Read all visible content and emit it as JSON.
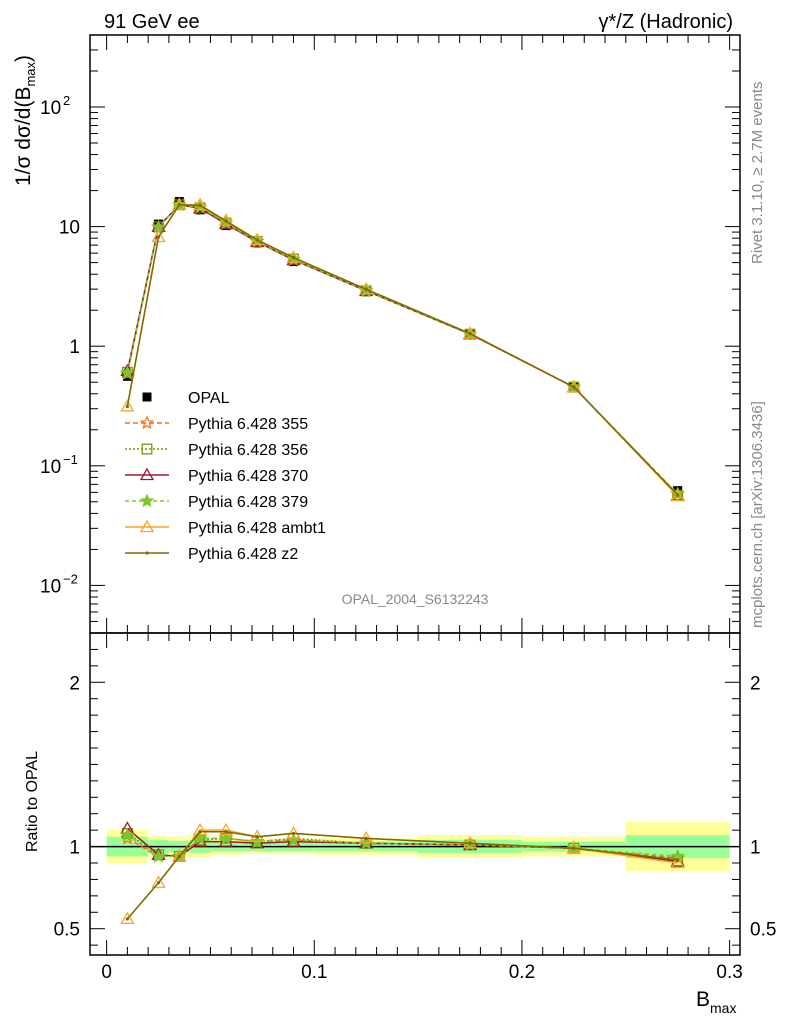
{
  "header": {
    "left": "91 GeV ee",
    "right": "γ*/Z (Hadronic)"
  },
  "side_text": {
    "rivet": "Rivet 3.1.10, ≥ 2.7M events",
    "mcplots": "mcplots.cern.ch [arXiv:1306.3436]"
  },
  "watermark": "OPAL_2004_S6132243",
  "chart_data": {
    "type": "line",
    "x": [
      0.01,
      0.025,
      0.035,
      0.045,
      0.0575,
      0.0725,
      0.09,
      0.125,
      0.175,
      0.225,
      0.275
    ],
    "bins": [
      [
        0.0,
        0.02
      ],
      [
        0.02,
        0.03
      ],
      [
        0.03,
        0.04
      ],
      [
        0.04,
        0.05
      ],
      [
        0.05,
        0.065
      ],
      [
        0.065,
        0.08
      ],
      [
        0.08,
        0.1
      ],
      [
        0.1,
        0.15
      ],
      [
        0.15,
        0.2
      ],
      [
        0.2,
        0.25
      ],
      [
        0.25,
        0.3
      ]
    ],
    "main": {
      "ylabel_main": "1/σ dσ/d(B",
      "ylabel_sub": "max",
      "ylabel_end": ")",
      "yscale": "log",
      "ylim": [
        0.004,
        400
      ],
      "yticks": [
        {
          "value": 0.01,
          "base": "10",
          "exp": "−2"
        },
        {
          "value": 0.1,
          "base": "10",
          "exp": "−1"
        },
        {
          "value": 1,
          "base": "1",
          "exp": ""
        },
        {
          "value": 10,
          "base": "10",
          "exp": ""
        },
        {
          "value": 100,
          "base": "10",
          "exp": "2"
        }
      ]
    },
    "ratio": {
      "ylabel": "Ratio to OPAL",
      "ylim": [
        0.34,
        2.3
      ],
      "yticks": [
        "0.5",
        "1",
        "2"
      ],
      "band_inner": [
        0.06,
        0.04,
        0.035,
        0.04,
        0.03,
        0.03,
        0.03,
        0.03,
        0.04,
        0.03,
        0.07
      ],
      "band_outer": [
        0.1,
        0.065,
        0.06,
        0.07,
        0.05,
        0.045,
        0.045,
        0.05,
        0.07,
        0.06,
        0.15
      ]
    },
    "xlim": [
      -0.008,
      0.305
    ],
    "xlabel_main": "B",
    "xlabel_sub": "max",
    "xticks": [
      "0",
      "0.1",
      "0.2",
      "0.3"
    ],
    "data": {
      "name": "OPAL",
      "values": [
        0.56,
        10.5,
        16.2,
        13.8,
        10.2,
        7.3,
        5.1,
        2.85,
        1.25,
        0.46,
        0.062
      ]
    },
    "series": [
      {
        "name": "Pythia 6.428 355",
        "color": "#ff6a13",
        "dash": "5,3",
        "marker": "star",
        "ratio": [
          1.05,
          0.94,
          0.94,
          1.05,
          1.05,
          1.03,
          1.04,
          1.02,
          1.01,
          0.99,
          0.93
        ]
      },
      {
        "name": "Pythia 6.428 356",
        "color": "#779c00",
        "dash": "2,2",
        "marker": "square-open",
        "ratio": [
          1.08,
          0.95,
          0.94,
          1.04,
          1.05,
          1.03,
          1.05,
          1.02,
          1.01,
          0.99,
          0.91
        ]
      },
      {
        "name": "Pythia 6.428 370",
        "color": "#a01830",
        "dash": "",
        "marker": "triangle-open",
        "ratio": [
          1.11,
          0.95,
          0.94,
          1.03,
          1.03,
          1.02,
          1.03,
          1.02,
          1.01,
          0.99,
          0.91
        ]
      },
      {
        "name": "Pythia 6.428 379",
        "color": "#7ec42e",
        "dash": "4,3",
        "marker": "star-filled",
        "ratio": [
          1.07,
          0.94,
          0.94,
          1.05,
          1.05,
          1.03,
          1.04,
          1.02,
          1.01,
          0.99,
          0.94
        ]
      },
      {
        "name": "Pythia 6.428 ambt1",
        "color": "#f5a623",
        "dash": "",
        "marker": "triangle-open",
        "ratio": [
          0.56,
          0.78,
          0.94,
          1.1,
          1.1,
          1.06,
          1.08,
          1.05,
          1.02,
          0.99,
          0.9
        ]
      },
      {
        "name": "Pythia 6.428 z2",
        "color": "#7a6a00",
        "dash": "",
        "marker": "dot",
        "ratio": [
          0.56,
          0.78,
          0.94,
          1.09,
          1.09,
          1.06,
          1.08,
          1.05,
          1.02,
          0.99,
          0.92
        ]
      }
    ]
  }
}
